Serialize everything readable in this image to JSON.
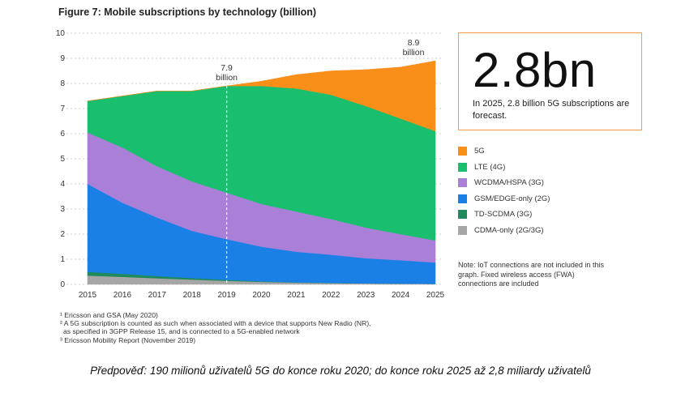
{
  "chart_data": {
    "type": "area",
    "title": "Figure 7: Mobile subscriptions by technology (billion)",
    "xlabel": "",
    "ylabel": "",
    "x": [
      2015,
      2016,
      2017,
      2018,
      2019,
      2020,
      2021,
      2022,
      2023,
      2024,
      2025
    ],
    "ylim": [
      0,
      10
    ],
    "yticks": [
      "0",
      "1",
      "2",
      "3",
      "4",
      "5",
      "6",
      "7",
      "8",
      "9",
      "10"
    ],
    "stacking": "stacked",
    "series": [
      {
        "name": "CDMA-only (2G/3G)",
        "color": "#a6a6a6",
        "values": [
          0.35,
          0.3,
          0.24,
          0.19,
          0.14,
          0.1,
          0.07,
          0.05,
          0.04,
          0.03,
          0.02
        ]
      },
      {
        "name": "TD-SCDMA (3G)",
        "color": "#1f8a5c",
        "values": [
          0.15,
          0.12,
          0.09,
          0.06,
          0.04,
          0.02,
          0.01,
          0.01,
          0.0,
          0.0,
          0.0
        ]
      },
      {
        "name": "GSM/EDGE-only (2G)",
        "color": "#1a80e6",
        "values": [
          3.5,
          2.83,
          2.33,
          1.88,
          1.62,
          1.38,
          1.22,
          1.12,
          1.0,
          0.93,
          0.85
        ]
      },
      {
        "name": "WCDMA/HSPA (3G)",
        "color": "#a97fd8",
        "values": [
          2.05,
          2.2,
          2.04,
          1.97,
          1.85,
          1.7,
          1.6,
          1.42,
          1.22,
          1.04,
          0.88
        ]
      },
      {
        "name": "LTE (4G)",
        "color": "#19bf6f",
        "values": [
          1.25,
          2.05,
          3.0,
          3.6,
          4.25,
          4.7,
          4.9,
          4.95,
          4.84,
          4.6,
          4.35
        ]
      },
      {
        "name": "5G",
        "color": "#f98e19",
        "values": [
          0.0,
          0.0,
          0.0,
          0.0,
          0.0,
          0.19,
          0.55,
          0.95,
          1.45,
          2.05,
          2.8
        ]
      }
    ],
    "annotations": [
      {
        "x": 2019,
        "value": "7.9",
        "unit": "billion"
      },
      {
        "x": 2025,
        "value": "8.9",
        "unit": "billion"
      }
    ]
  },
  "callout": {
    "big_value": "2.8bn",
    "text": "In 2025, 2.8 billion 5G subscriptions are forecast."
  },
  "legend": [
    {
      "label": "5G",
      "color": "#f98e19"
    },
    {
      "label": "LTE (4G)",
      "color": "#19bf6f"
    },
    {
      "label": "WCDMA/HSPA (3G)",
      "color": "#a97fd8"
    },
    {
      "label": "GSM/EDGE-only (2G)",
      "color": "#1a80e6"
    },
    {
      "label": "TD-SCDMA (3G)",
      "color": "#1f8a5c"
    },
    {
      "label": "CDMA-only (2G/3G)",
      "color": "#a6a6a6"
    }
  ],
  "note": "Note: IoT connections are not included in this graph. Fixed wireless access (FWA) connections are included",
  "footnotes": [
    "¹ Ericsson and GSA (May 2020)",
    "² A 5G subscription is counted as such when associated with a device that supports New Radio (NR),",
    "as specified in 3GPP Release 15, and is connected to a 5G-enabled network",
    "³ Ericsson Mobility Report (November 2019)"
  ],
  "caption": "Předpověď: 190 milionů uživatelů 5G do konce roku 2020; do konce roku 2025 až 2,8 miliardy uživatelů"
}
